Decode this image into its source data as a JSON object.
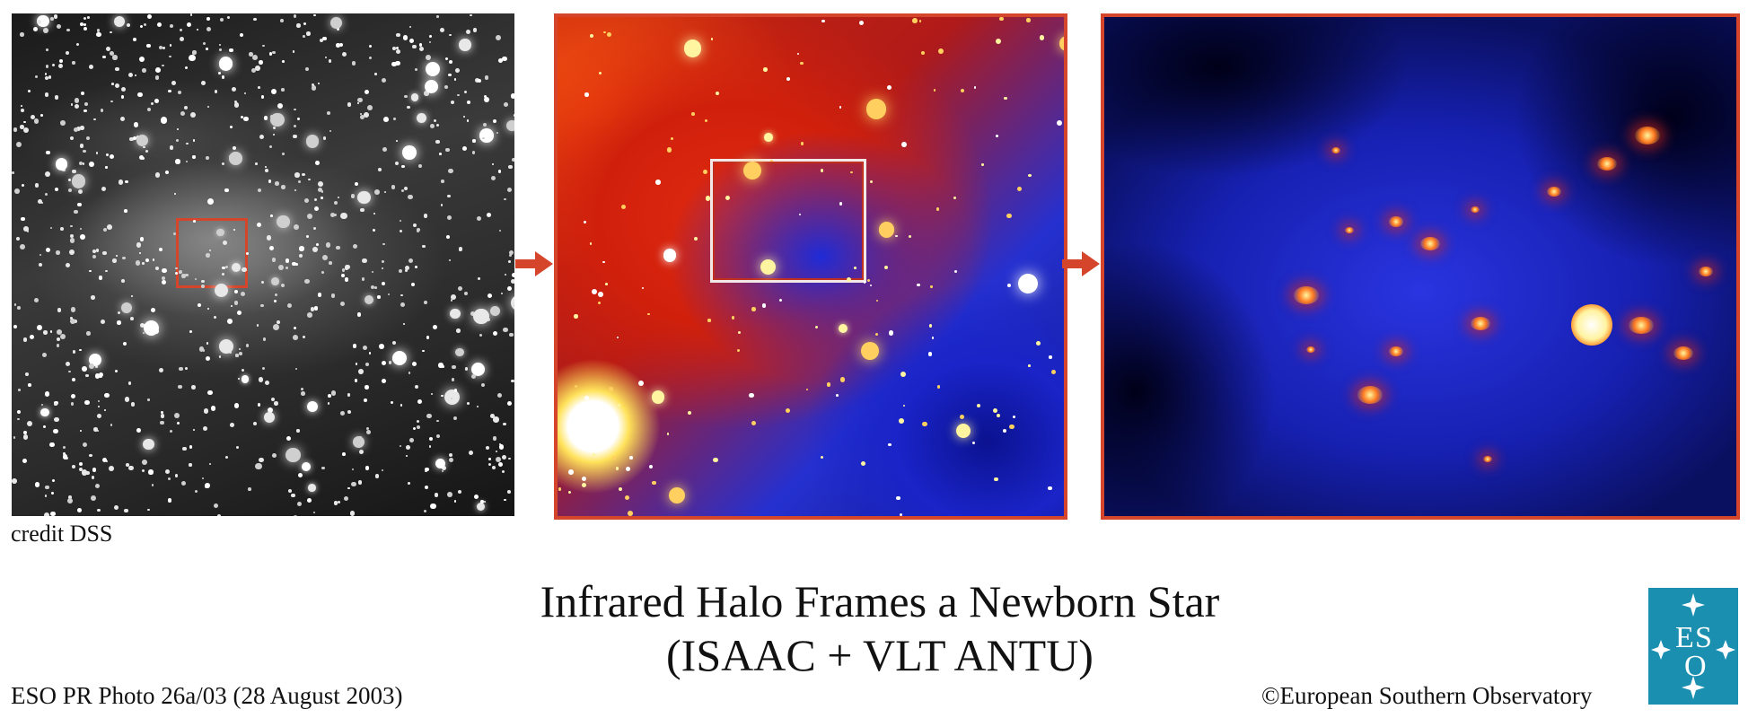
{
  "panels": {
    "left": {
      "label": "credit DSS"
    },
    "middle": {},
    "right": {}
  },
  "title": {
    "line1": "Infrared Halo Frames a Newborn Star",
    "line2": "(ISAAC + VLT ANTU)"
  },
  "footer": {
    "photo_id": "ESO PR Photo 26a/03 (28 August 2003)",
    "copyright": "©European Southern Observatory"
  },
  "logo": {
    "text": "ESO",
    "icon": "eso-logo-icon"
  },
  "colors": {
    "accent": "#d4452b",
    "logo_bg": "#1a8fb0"
  }
}
